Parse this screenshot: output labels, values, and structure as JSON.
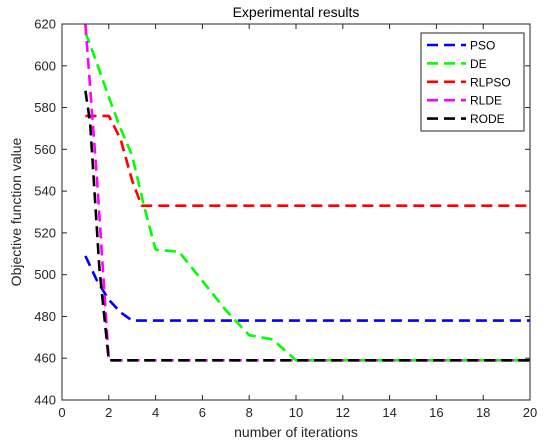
{
  "chart_data": {
    "type": "line",
    "title": "Experimental results",
    "xlabel": "number of iterations",
    "ylabel": "Objective function value",
    "xlim": [
      0,
      20
    ],
    "ylim": [
      440,
      620
    ],
    "xticks": [
      0,
      2,
      4,
      6,
      8,
      10,
      12,
      14,
      16,
      18,
      20
    ],
    "yticks": [
      440,
      460,
      480,
      500,
      520,
      540,
      560,
      580,
      600,
      620
    ],
    "grid": false,
    "legend_position": "top-right",
    "series": [
      {
        "name": "PSO",
        "color": "#0000ff",
        "x": [
          1,
          1.5,
          2,
          2.5,
          3,
          20
        ],
        "y": [
          509,
          497,
          488,
          482,
          478,
          478
        ]
      },
      {
        "name": "DE",
        "color": "#00ff00",
        "x": [
          1,
          1.4,
          2,
          2.5,
          3,
          3.5,
          4,
          5,
          6,
          7,
          8,
          9,
          10,
          20
        ],
        "y": [
          616,
          604,
          585,
          570,
          557,
          533,
          512,
          511,
          497,
          483,
          471,
          469,
          459,
          459
        ]
      },
      {
        "name": "RLPSO",
        "color": "#ff0000",
        "x": [
          1,
          1.5,
          2,
          2.5,
          3,
          3.4,
          20
        ],
        "y": [
          576,
          576,
          576,
          565,
          545,
          533,
          533
        ]
      },
      {
        "name": "RLDE",
        "color": "#ff00ff",
        "x": [
          1,
          1.5,
          2,
          20
        ],
        "y": [
          620,
          545,
          459,
          459
        ]
      },
      {
        "name": "RODE",
        "color": "#000000",
        "x": [
          1,
          1.2,
          1.6,
          2,
          20
        ],
        "y": [
          588,
          573,
          503,
          459,
          459
        ]
      }
    ]
  }
}
